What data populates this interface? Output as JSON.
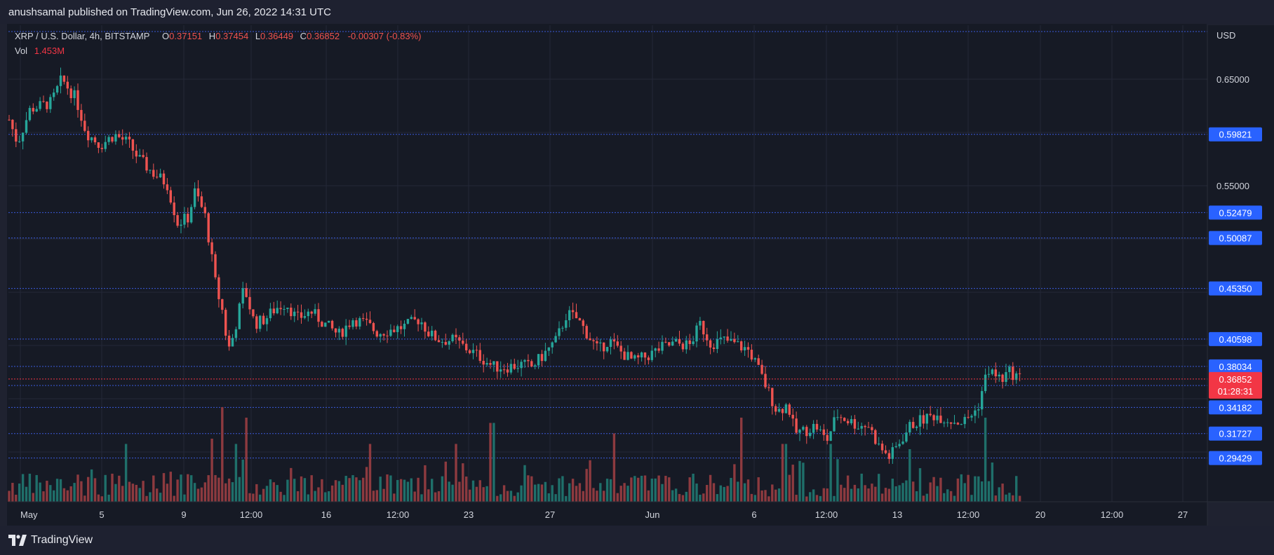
{
  "header": {
    "published_text": "anushsamal published on TradingView.com, Jun 26, 2022 14:31 UTC"
  },
  "footer": {
    "logo_text": "TradingView"
  },
  "legend": {
    "symbol": "XRP / U.S. Dollar, 4h, BITSTAMP",
    "open_label": "O",
    "open": "0.37151",
    "high_label": "H",
    "high": "0.37454",
    "low_label": "L",
    "low": "0.36449",
    "close_label": "C",
    "close": "0.36852",
    "change": "-0.00307 (-0.83%)",
    "vol_label": "Vol",
    "vol_value": "1.453M"
  },
  "colors": {
    "background": "#161a25",
    "frame": "#1e2130",
    "grid": "#262b3b",
    "up": "#26a69a",
    "down": "#ef5350",
    "vol_up": "#1f6f6a",
    "vol_down": "#8d3a3f",
    "level_line": "#3b5bdb",
    "level_badge": "#2962ff",
    "price_badge": "#f23645"
  },
  "chart_data": {
    "type": "candlestick",
    "symbol": "XRP / U.S. Dollar",
    "interval": "4h",
    "exchange": "BITSTAMP",
    "currency_label": "USD",
    "x_tick_labels": [
      "May",
      "5",
      "9",
      "12:00",
      "16",
      "12:00",
      "23",
      "27",
      "Jun",
      "6",
      "12:00",
      "13",
      "12:00",
      "20",
      "12:00",
      "27"
    ],
    "y_tick_labels": [
      "0.65000",
      "0.55000"
    ],
    "y_range": [
      0.255,
      0.68
    ],
    "horizontal_levels": [
      {
        "label": "0.59821",
        "value": 0.59821
      },
      {
        "label": "0.52479",
        "value": 0.52479
      },
      {
        "label": "0.50087",
        "value": 0.50087
      },
      {
        "label": "0.45350",
        "value": 0.4535
      },
      {
        "label": "0.40598",
        "value": 0.40598
      },
      {
        "label": "0.38034",
        "value": 0.38034
      },
      {
        "label": "0.36241",
        "value": 0.36241
      },
      {
        "label": "0.34182",
        "value": 0.34182
      },
      {
        "label": "0.31727",
        "value": 0.31727
      },
      {
        "label": "0.29429",
        "value": 0.29429
      }
    ],
    "last_price": {
      "label": "0.36852",
      "value": 0.36852,
      "countdown": "01:28:31"
    },
    "price_anchors": [
      [
        0,
        0.612
      ],
      [
        12,
        0.59
      ],
      [
        30,
        0.622
      ],
      [
        60,
        0.628
      ],
      [
        75,
        0.65
      ],
      [
        95,
        0.632
      ],
      [
        110,
        0.6
      ],
      [
        130,
        0.588
      ],
      [
        150,
        0.598
      ],
      [
        170,
        0.59
      ],
      [
        185,
        0.575
      ],
      [
        205,
        0.562
      ],
      [
        225,
        0.552
      ],
      [
        240,
        0.515
      ],
      [
        255,
        0.52
      ],
      [
        265,
        0.545
      ],
      [
        280,
        0.52
      ],
      [
        295,
        0.455
      ],
      [
        305,
        0.43
      ],
      [
        312,
        0.395
      ],
      [
        320,
        0.41
      ],
      [
        335,
        0.455
      ],
      [
        350,
        0.42
      ],
      [
        365,
        0.425
      ],
      [
        380,
        0.435
      ],
      [
        395,
        0.44
      ],
      [
        410,
        0.425
      ],
      [
        430,
        0.432
      ],
      [
        450,
        0.42
      ],
      [
        470,
        0.41
      ],
      [
        490,
        0.425
      ],
      [
        510,
        0.42
      ],
      [
        525,
        0.412
      ],
      [
        545,
        0.415
      ],
      [
        565,
        0.418
      ],
      [
        585,
        0.425
      ],
      [
        600,
        0.41
      ],
      [
        615,
        0.405
      ],
      [
        635,
        0.405
      ],
      [
        650,
        0.398
      ],
      [
        670,
        0.39
      ],
      [
        690,
        0.38
      ],
      [
        710,
        0.38
      ],
      [
        730,
        0.382
      ],
      [
        745,
        0.38
      ],
      [
        760,
        0.39
      ],
      [
        780,
        0.405
      ],
      [
        795,
        0.43
      ],
      [
        810,
        0.425
      ],
      [
        825,
        0.41
      ],
      [
        840,
        0.395
      ],
      [
        855,
        0.405
      ],
      [
        870,
        0.395
      ],
      [
        890,
        0.385
      ],
      [
        910,
        0.39
      ],
      [
        930,
        0.398
      ],
      [
        950,
        0.402
      ],
      [
        970,
        0.4
      ],
      [
        985,
        0.42
      ],
      [
        1000,
        0.402
      ],
      [
        1020,
        0.405
      ],
      [
        1040,
        0.4
      ],
      [
        1055,
        0.395
      ],
      [
        1065,
        0.382
      ],
      [
        1080,
        0.36
      ],
      [
        1095,
        0.338
      ],
      [
        1110,
        0.345
      ],
      [
        1120,
        0.318
      ],
      [
        1135,
        0.32
      ],
      [
        1150,
        0.325
      ],
      [
        1165,
        0.31
      ],
      [
        1180,
        0.335
      ],
      [
        1195,
        0.33
      ],
      [
        1210,
        0.325
      ],
      [
        1225,
        0.325
      ],
      [
        1240,
        0.305
      ],
      [
        1255,
        0.295
      ],
      [
        1270,
        0.31
      ],
      [
        1285,
        0.325
      ],
      [
        1300,
        0.33
      ],
      [
        1320,
        0.335
      ],
      [
        1340,
        0.33
      ],
      [
        1360,
        0.328
      ],
      [
        1380,
        0.34
      ],
      [
        1395,
        0.378
      ],
      [
        1405,
        0.372
      ],
      [
        1415,
        0.368
      ],
      [
        1425,
        0.375
      ],
      [
        1435,
        0.372
      ],
      [
        1445,
        0.368
      ]
    ],
    "volume_spikes": [
      [
        165,
        0.55
      ],
      [
        290,
        0.6
      ],
      [
        305,
        0.9
      ],
      [
        325,
        0.55
      ],
      [
        338,
        0.8
      ],
      [
        513,
        0.55
      ],
      [
        636,
        0.55
      ],
      [
        688,
        0.75
      ],
      [
        862,
        0.65
      ],
      [
        1042,
        0.8
      ],
      [
        1105,
        0.55
      ],
      [
        1170,
        0.55
      ],
      [
        1285,
        0.5
      ],
      [
        1392,
        0.8
      ]
    ]
  }
}
